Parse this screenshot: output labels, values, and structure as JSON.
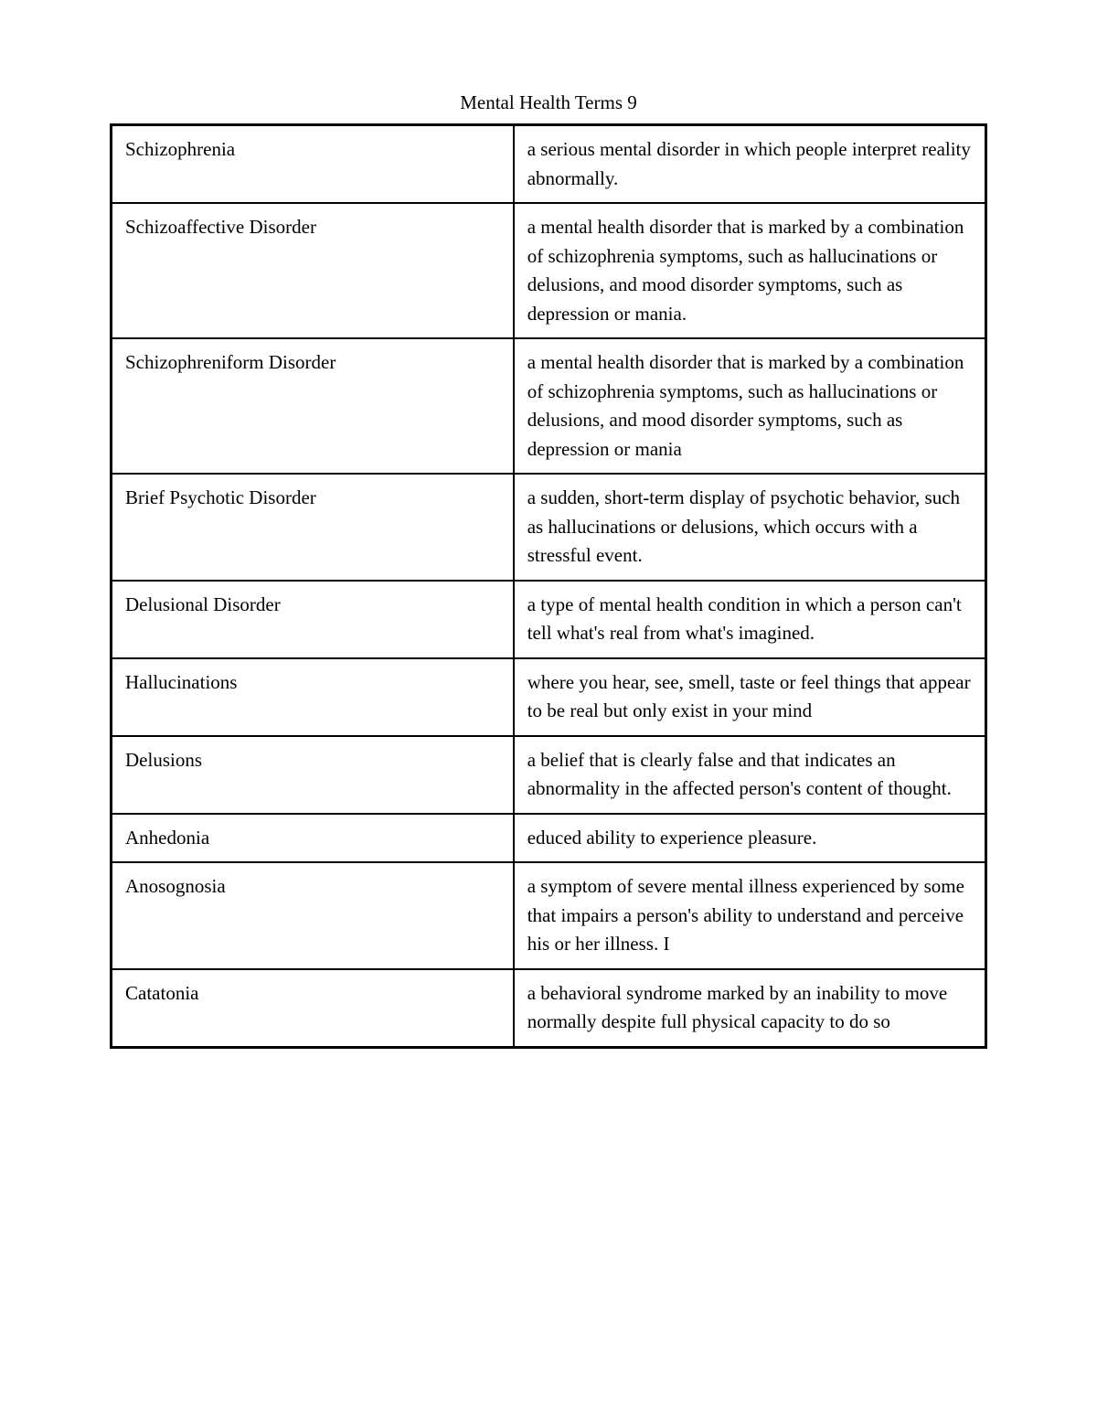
{
  "title": "Mental Health Terms 9",
  "table": {
    "border_color": "#000000",
    "background_color": "#ffffff",
    "text_color": "#000000",
    "font_family": "Georgia, serif",
    "font_size_pt": 16,
    "column_widths": [
      "46%",
      "54%"
    ],
    "rows": [
      {
        "term": "Schizophrenia",
        "definition": " a serious mental disorder in which people interpret reality abnormally."
      },
      {
        "term": "Schizoaffective Disorder",
        "definition": "a mental health disorder that is marked by a combination of schizophrenia symptoms, such as hallucinations or delusions, and mood disorder symptoms, such as depression or mania."
      },
      {
        "term": "Schizophreniform Disorder",
        "definition": " a mental health disorder that is marked by a combination of schizophrenia symptoms, such as hallucinations or delusions, and mood disorder symptoms, such as depression or mania"
      },
      {
        "term": "Brief Psychotic Disorder",
        "definition": " a sudden, short-term display of psychotic behavior, such as hallucinations or delusions, which occurs with a stressful event."
      },
      {
        "term": "Delusional Disorder",
        "definition": " a type of mental health condition in which a person can't tell what's real from what's imagined."
      },
      {
        "term": "Hallucinations",
        "definition": " where you hear, see, smell, taste or feel things that appear to be real but only exist in your mind"
      },
      {
        "term": "Delusions",
        "definition": " a belief that is clearly false and that indicates an abnormality in the affected person's content of thought."
      },
      {
        "term": "Anhedonia",
        "definition": " educed ability to experience pleasure."
      },
      {
        "term": "Anosognosia",
        "definition": " a symptom of severe mental illness experienced by some that impairs a person's ability to understand and perceive his or her illness. I"
      },
      {
        "term": "Catatonia",
        "definition": " a behavioral syndrome marked by an inability to move normally despite full physical capacity to do so"
      }
    ]
  }
}
